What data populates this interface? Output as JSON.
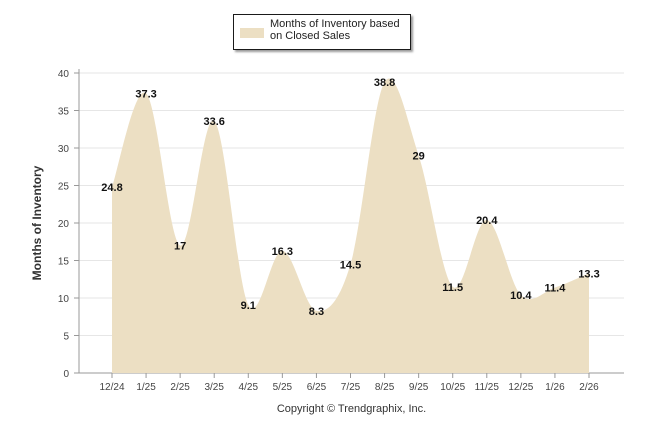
{
  "chart_data": {
    "type": "area",
    "title": "",
    "xlabel": "",
    "ylabel": "Months of Inventory",
    "ylim": [
      0,
      40
    ],
    "yticks": [
      0,
      5,
      10,
      15,
      20,
      25,
      30,
      35,
      40
    ],
    "grid": true,
    "legend_position": "top-center",
    "categories": [
      "12/24",
      "1/25",
      "2/25",
      "3/25",
      "4/25",
      "5/25",
      "6/25",
      "7/25",
      "8/25",
      "9/25",
      "10/25",
      "11/25",
      "12/25",
      "1/26",
      "2/26"
    ],
    "series": [
      {
        "name": "Months of Inventory based on Closed Sales",
        "color": "#ecdfc3",
        "values": [
          24.8,
          37.3,
          17,
          33.6,
          9.1,
          16.3,
          8.3,
          14.5,
          38.8,
          29,
          11.5,
          20.4,
          10.4,
          11.4,
          13.3
        ],
        "labels": [
          "24.8",
          "37.3",
          "17",
          "33.6",
          "9.1",
          "16.3",
          "8.3",
          "14.5",
          "38.8",
          "29",
          "11.5",
          "20.4",
          "10.4",
          "11.4",
          "13.3"
        ]
      }
    ]
  },
  "legend": {
    "label": "Months of Inventory based on Closed Sales"
  },
  "footer": {
    "copyright": "Copyright © Trendgraphix, Inc."
  }
}
